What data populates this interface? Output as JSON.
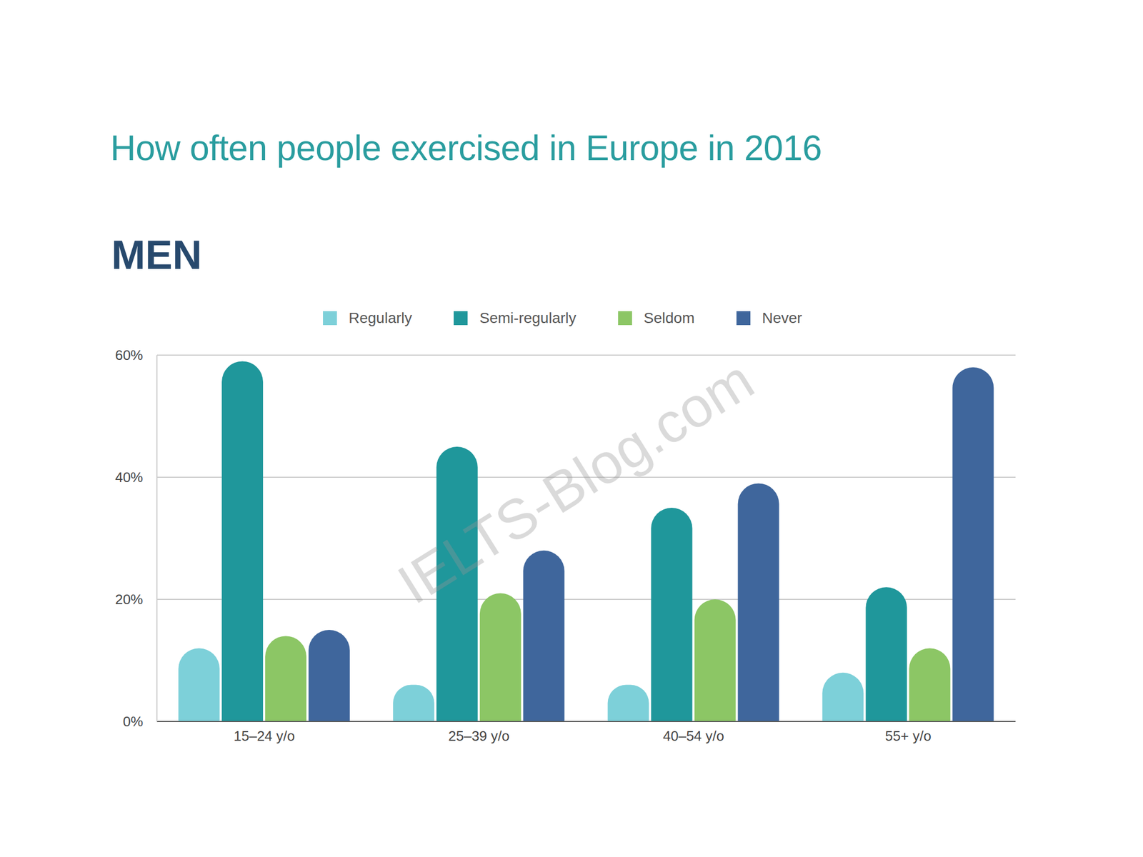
{
  "chart_data": {
    "type": "bar",
    "title": "How often people exercised in Europe in 2016",
    "subtitle": "MEN",
    "categories": [
      "15–24 y/o",
      "25–39 y/o",
      "40–54 y/o",
      "55+ y/o"
    ],
    "series": [
      {
        "name": "Regularly",
        "color": "#7dd0d9",
        "values": [
          12,
          6,
          6,
          8
        ]
      },
      {
        "name": "Semi-regularly",
        "color": "#1f979b",
        "values": [
          59,
          45,
          35,
          22
        ]
      },
      {
        "name": "Seldom",
        "color": "#8cc665",
        "values": [
          14,
          21,
          20,
          12
        ]
      },
      {
        "name": "Never",
        "color": "#3f669c",
        "values": [
          15,
          28,
          39,
          58
        ]
      }
    ],
    "ylim": [
      0,
      60
    ],
    "yticks": [
      {
        "value": 0,
        "label": "0%"
      },
      {
        "value": 20,
        "label": "20%"
      },
      {
        "value": 40,
        "label": "40%"
      },
      {
        "value": 60,
        "label": "60%"
      }
    ],
    "grid": true,
    "legend": "top",
    "annotations": [
      "IELTS-Blog.com"
    ]
  }
}
